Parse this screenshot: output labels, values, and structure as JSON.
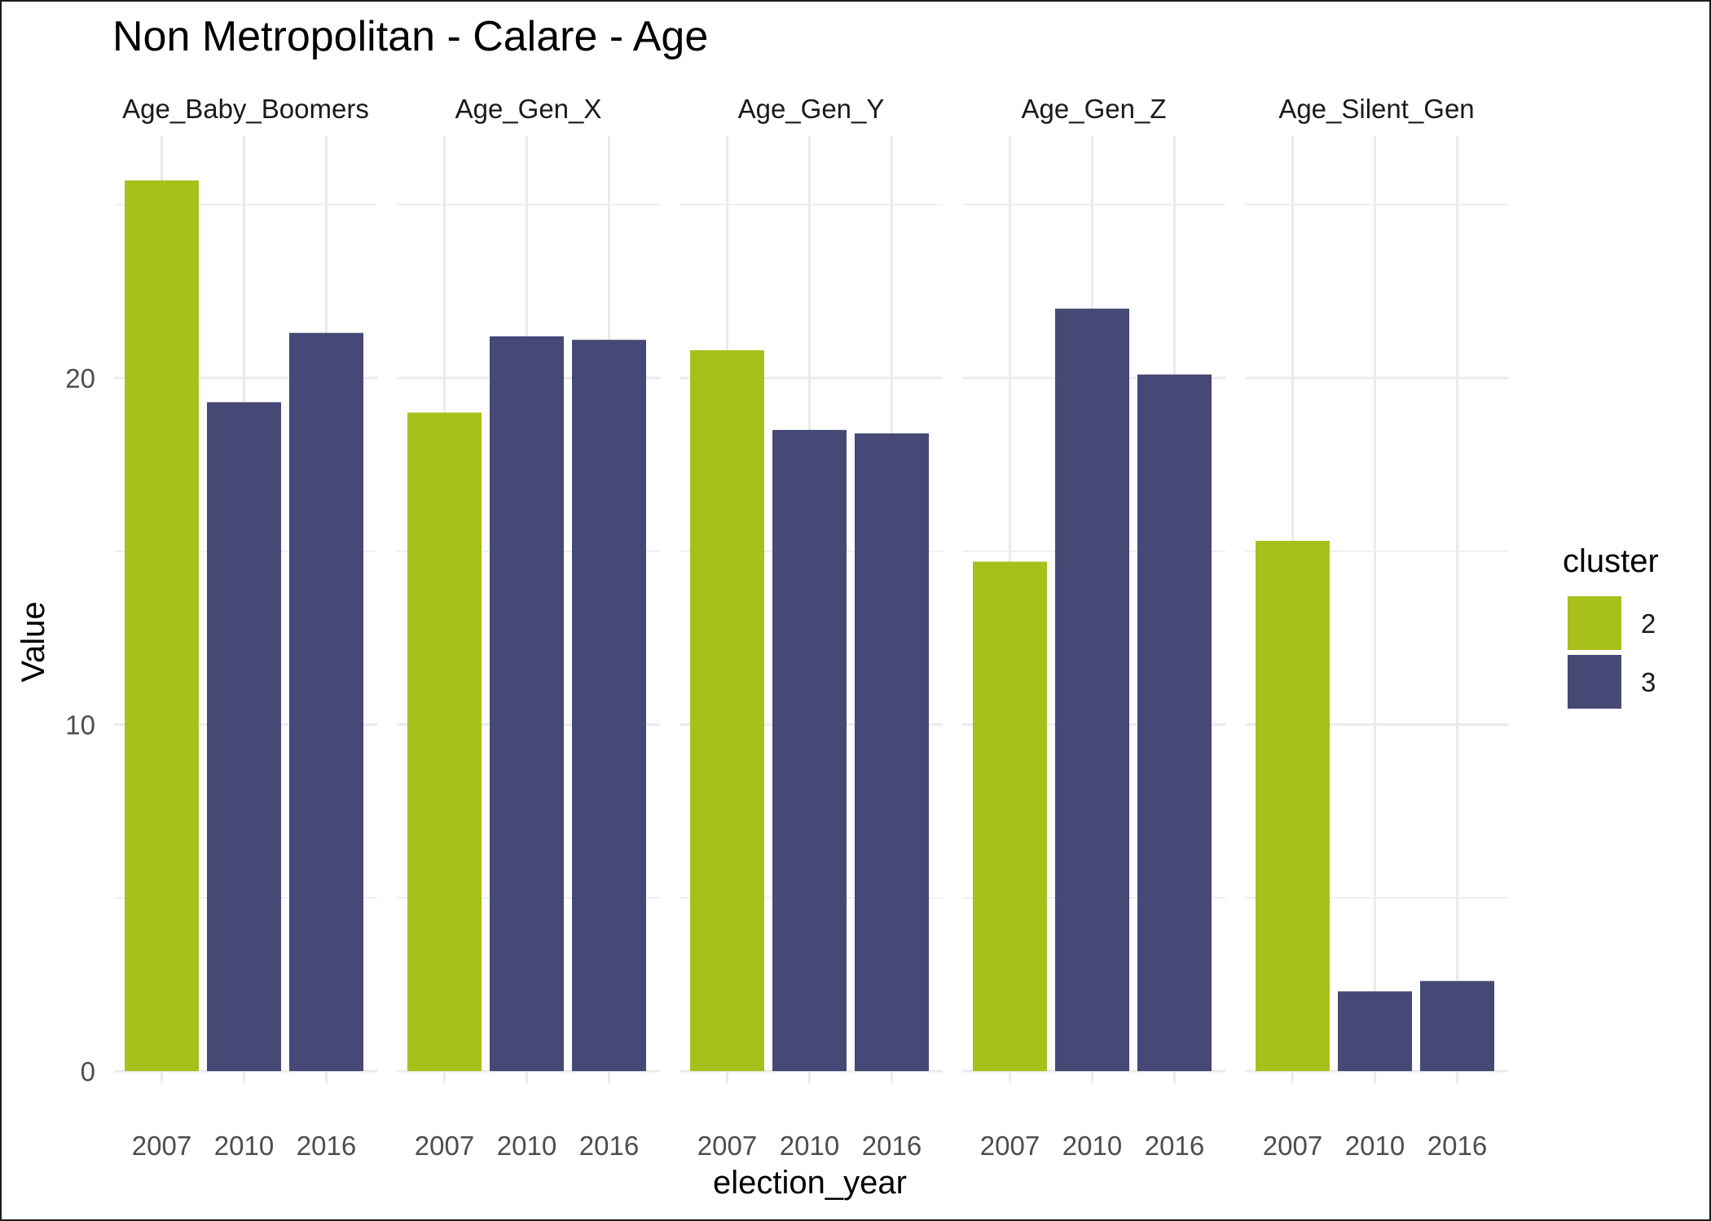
{
  "chart_data": {
    "type": "bar",
    "title": "Non Metropolitan - Calare - Age",
    "xlabel": "election_year",
    "ylabel": "Value",
    "ylim": [
      0,
      27
    ],
    "yticks": [
      0,
      10,
      20
    ],
    "grid": true,
    "legend_position": "right",
    "legend_title": "cluster",
    "clusters": [
      {
        "name": "2",
        "color": "#a8c01c"
      },
      {
        "name": "3",
        "color": "#464876"
      }
    ],
    "categories": [
      "2007",
      "2010",
      "2016"
    ],
    "facets": [
      {
        "label": "Age_Baby_Boomers",
        "values": [
          25.7,
          19.3,
          21.3
        ],
        "clusters": [
          "2",
          "3",
          "3"
        ]
      },
      {
        "label": "Age_Gen_X",
        "values": [
          19.0,
          21.2,
          21.1
        ],
        "clusters": [
          "2",
          "3",
          "3"
        ]
      },
      {
        "label": "Age_Gen_Y",
        "values": [
          20.8,
          18.5,
          18.4
        ],
        "clusters": [
          "2",
          "3",
          "3"
        ]
      },
      {
        "label": "Age_Gen_Z",
        "values": [
          14.7,
          22.0,
          20.1
        ],
        "clusters": [
          "2",
          "3",
          "3"
        ]
      },
      {
        "label": "Age_Silent_Gen",
        "values": [
          15.3,
          2.3,
          2.6
        ],
        "clusters": [
          "2",
          "3",
          "3"
        ]
      }
    ]
  }
}
